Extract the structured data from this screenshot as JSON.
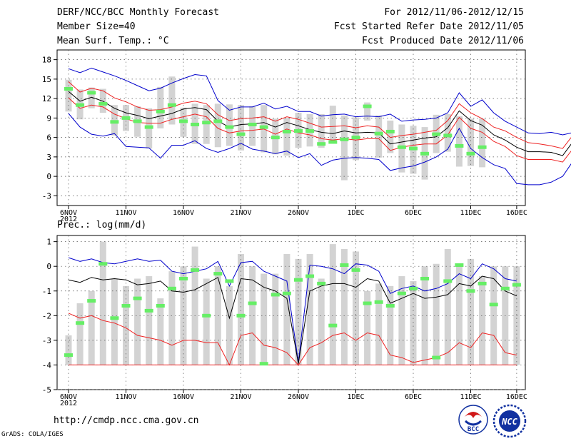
{
  "header": {
    "title": "DERF/NCC/BCC Monthly Forecast",
    "member_size": "Member Size=40",
    "variable": "Mean Surf. Temp.: °C",
    "period": "For 2012/11/06-2012/12/15",
    "started": "Fcst Started Refer Date 2012/11/05",
    "produced": "Fcst Produced Date 2012/11/06"
  },
  "footer": {
    "url": "http://cmdp.ncc.cma.gov.cn",
    "grads": "GrADS: COLA/IGES",
    "logo_bcc_text": "BCC",
    "logo_ncc_text": "NCC"
  },
  "colors": {
    "bar": "#d3d3d3",
    "obs": "#66ee66",
    "mean": "#000000",
    "inner": "#ee2222",
    "outer": "#0000cc",
    "axis": "#000000",
    "grid": "#555555"
  },
  "chart_data": [
    {
      "type": "line",
      "title": "Mean Surf. Temp.: °C",
      "ylim": [
        -4.5,
        19.5
      ],
      "yticks": [
        -3,
        0,
        3,
        6,
        9,
        12,
        15,
        18
      ],
      "ytick_labels": [
        "-3",
        "0",
        "3",
        "6",
        "9",
        "12",
        "15",
        "18"
      ],
      "xticks": [
        0,
        5,
        10,
        15,
        20,
        25,
        30,
        35,
        39
      ],
      "xtick_labels": [
        "6NOV",
        "11NOV",
        "16NOV",
        "21NOV",
        "26NOV",
        "1DEC",
        "6DEC",
        "11DEC",
        "16DEC"
      ],
      "x_sub_label": "2012",
      "grid": true,
      "series": [
        {
          "name": "max",
          "values": [
            16.6,
            16.0,
            16.7,
            16.1,
            15.5,
            14.8,
            14.0,
            13.2,
            13.6,
            14.4,
            15.1,
            15.7,
            15.5,
            11.7,
            10.2,
            10.7,
            10.7,
            11.3,
            10.4,
            10.8,
            10.0,
            10.0,
            9.3,
            9.5,
            9.6,
            9.2,
            9.3,
            9.2,
            9.6,
            8.5,
            8.7,
            8.8,
            9.0,
            9.8,
            12.9,
            10.8,
            11.8,
            9.8,
            8.5,
            7.6,
            6.7,
            6.6,
            6.8,
            6.4,
            6.8,
            6.1,
            5.0,
            5.6,
            7.0
          ]
        },
        {
          "name": "upper",
          "values": [
            14.6,
            13.0,
            13.6,
            13.2,
            12.1,
            11.5,
            10.7,
            10.2,
            10.3,
            10.7,
            11.3,
            11.6,
            11.2,
            9.5,
            8.6,
            8.9,
            9.0,
            9.2,
            8.5,
            9.2,
            8.8,
            8.2,
            7.6,
            7.7,
            7.8,
            7.5,
            7.8,
            7.6,
            6.0,
            6.3,
            6.5,
            6.8,
            7.1,
            8.6,
            11.2,
            9.8,
            8.9,
            7.6,
            7.0,
            6.0,
            5.2,
            5.0,
            4.7,
            4.3,
            6.6,
            6.4,
            5.1,
            3.8,
            4.5
          ]
        },
        {
          "name": "mean",
          "values": [
            13.1,
            11.6,
            12.2,
            11.6,
            10.5,
            9.8,
            9.4,
            8.9,
            9.3,
            9.7,
            10.4,
            10.6,
            10.3,
            8.5,
            7.6,
            8.0,
            8.1,
            8.3,
            7.6,
            8.3,
            7.8,
            7.2,
            6.8,
            6.6,
            7.0,
            6.7,
            6.8,
            6.7,
            5.0,
            5.3,
            5.6,
            5.9,
            6.1,
            7.5,
            10.1,
            8.6,
            7.9,
            6.4,
            5.6,
            4.5,
            3.8,
            3.8,
            3.7,
            3.2,
            5.6,
            5.6,
            4.2,
            3.1,
            3.5
          ]
        },
        {
          "name": "lower",
          "values": [
            12.1,
            10.5,
            11.0,
            10.7,
            9.6,
            8.9,
            8.3,
            8.2,
            8.2,
            8.8,
            9.2,
            9.6,
            9.2,
            7.4,
            6.7,
            7.0,
            7.1,
            7.3,
            6.5,
            7.3,
            6.7,
            6.4,
            5.8,
            5.6,
            5.8,
            5.6,
            5.8,
            5.8,
            4.0,
            4.5,
            4.8,
            5.0,
            5.0,
            6.4,
            9.1,
            7.4,
            6.8,
            5.4,
            4.6,
            3.2,
            2.6,
            2.6,
            2.6,
            2.2,
            4.5,
            4.5,
            3.1,
            2.2,
            2.8
          ]
        },
        {
          "name": "min",
          "values": [
            9.7,
            7.6,
            6.5,
            6.2,
            6.6,
            4.6,
            4.5,
            4.4,
            2.8,
            4.8,
            4.8,
            5.5,
            4.3,
            3.7,
            4.3,
            5.1,
            4.2,
            3.9,
            3.5,
            3.9,
            2.9,
            3.5,
            1.7,
            2.5,
            2.8,
            2.9,
            2.8,
            2.6,
            0.9,
            1.3,
            1.6,
            2.2,
            3.0,
            4.2,
            7.4,
            4.3,
            2.9,
            1.8,
            1.2,
            -1.1,
            -1.3,
            -1.3,
            -0.9,
            0.0,
            2.6,
            2.7,
            0.5,
            -0.1,
            1.0
          ]
        },
        {
          "name": "obs",
          "values": [
            13.5,
            11.0,
            12.9,
            11.2,
            8.4,
            9.0,
            8.5,
            7.6,
            10.0,
            11.0,
            8.5,
            8.0,
            8.3,
            8.5,
            7.6,
            6.5,
            8.0,
            7.6,
            6.0,
            6.9,
            7.0,
            7.0,
            5.0,
            5.3,
            5.7,
            6.0,
            10.8,
            6.6,
            6.9,
            4.5,
            4.3,
            3.5,
            6.5,
            6.3,
            4.7,
            3.5,
            4.5
          ]
        },
        {
          "name": "bar_top",
          "values": [
            14.9,
            13.4,
            13.7,
            13.5,
            11.0,
            11.0,
            10.8,
            10.5,
            13.8,
            15.4,
            10.6,
            11.2,
            11.0,
            11.2,
            11.1,
            11.0,
            10.8,
            11.0,
            8.9,
            9.0,
            9.8,
            9.6,
            9.6,
            10.9,
            9.4,
            9.1,
            11.4,
            9.4,
            8.6,
            8.0,
            7.8,
            7.6,
            9.5,
            9.6,
            9.3,
            8.9,
            8.9
          ]
        },
        {
          "name": "bar_bottom",
          "values": [
            10.0,
            8.8,
            10.5,
            9.8,
            6.3,
            7.0,
            6.1,
            4.3,
            7.4,
            8.0,
            6.1,
            5.0,
            5.0,
            4.5,
            4.7,
            4.0,
            4.7,
            3.7,
            3.4,
            3.2,
            4.4,
            4.6,
            4.4,
            5.2,
            -0.6,
            2.5,
            8.6,
            2.9,
            3.6,
            0.6,
            0.4,
            -0.5,
            3.6,
            3.8,
            1.5,
            1.6,
            1.4
          ]
        }
      ]
    },
    {
      "type": "line",
      "title": "Prec.: log(mm/d)",
      "ylim": [
        -5,
        1.25
      ],
      "yticks": [
        -5,
        -4,
        -3,
        -2,
        -1,
        0,
        1
      ],
      "ytick_labels": [
        "-5",
        "-4",
        "-3",
        "-2",
        "-1",
        "0",
        "1"
      ],
      "xticks": [
        0,
        5,
        10,
        15,
        20,
        25,
        30,
        35,
        39
      ],
      "xtick_labels": [
        "6NOV",
        "11NOV",
        "16NOV",
        "21NOV",
        "26NOV",
        "1DEC",
        "6DEC",
        "11DEC",
        "16DEC"
      ],
      "x_sub_label": "2012",
      "grid": true,
      "series": [
        {
          "name": "max",
          "values": [
            0.35,
            0.2,
            0.3,
            0.15,
            0.1,
            0.2,
            0.3,
            0.2,
            0.25,
            -0.2,
            -0.3,
            -0.2,
            -0.1,
            0.2,
            -0.8,
            0.15,
            0.2,
            -0.2,
            -0.4,
            -0.6,
            -3.9,
            0.05,
            0.0,
            -0.1,
            -0.3,
            0.1,
            0.05,
            -0.2,
            -1.1,
            -0.9,
            -0.8,
            -1.0,
            -0.9,
            -0.7,
            -0.3,
            -0.5,
            0.1,
            -0.1,
            -0.5,
            -0.6
          ]
        },
        {
          "name": "mean",
          "values": [
            -0.55,
            -0.65,
            -0.45,
            -0.55,
            -0.5,
            -0.55,
            -0.75,
            -0.7,
            -0.6,
            -1.0,
            -1.05,
            -0.95,
            -0.7,
            -0.45,
            -2.1,
            -0.5,
            -0.55,
            -0.85,
            -1.0,
            -1.3,
            -3.95,
            -1.0,
            -0.8,
            -0.7,
            -0.7,
            -0.85,
            -0.5,
            -0.6,
            -1.5,
            -1.3,
            -1.1,
            -1.3,
            -1.25,
            -1.15,
            -0.7,
            -0.8,
            -0.4,
            -0.5,
            -1.0,
            -1.2
          ]
        },
        {
          "name": "lower",
          "values": [
            -1.9,
            -2.1,
            -2.0,
            -2.2,
            -2.3,
            -2.5,
            -2.8,
            -2.9,
            -3.0,
            -3.2,
            -3.0,
            -3.0,
            -3.1,
            -3.1,
            -4.0,
            -2.8,
            -2.7,
            -3.2,
            -3.3,
            -3.5,
            -4.0,
            -3.3,
            -3.1,
            -2.8,
            -2.7,
            -3.0,
            -2.7,
            -2.8,
            -3.6,
            -3.7,
            -3.9,
            -3.8,
            -3.7,
            -3.5,
            -3.1,
            -3.3,
            -2.7,
            -2.8,
            -3.5,
            -3.6
          ]
        },
        {
          "name": "min",
          "values": [
            -4,
            -4,
            -4,
            -4,
            -4,
            -4,
            -4,
            -4,
            -4,
            -4,
            -4,
            -4,
            -4,
            -4,
            -4,
            -4,
            -4,
            -4,
            -4,
            -4,
            -4,
            -4,
            -4,
            -4,
            -4,
            -4,
            -4,
            -4,
            -4,
            -4,
            -4,
            -4,
            -4,
            -4,
            -4,
            -4,
            -4,
            -4,
            -4,
            -4
          ]
        },
        {
          "name": "obs",
          "values": [
            -3.6,
            -2.3,
            -1.4,
            0.1,
            -2.1,
            -1.6,
            -1.3,
            -1.8,
            -1.6,
            -0.9,
            -0.5,
            -0.15,
            -2.0,
            -0.3,
            -0.6,
            -2.0,
            -1.5,
            -3.95,
            -1.15,
            -1.1,
            -0.55,
            -0.4,
            -0.7,
            -2.4,
            0.05,
            -0.15,
            -1.5,
            -1.45,
            -1.6,
            -1.1,
            -0.9,
            -0.5,
            -3.7,
            -0.6,
            0.05,
            -1.0,
            -0.7,
            -1.55,
            -0.9,
            -0.75
          ]
        },
        {
          "name": "bar_top",
          "values": [
            -2.8,
            -1.5,
            -1.0,
            1.0,
            -0.5,
            -0.8,
            -0.5,
            -0.4,
            -1.3,
            -0.2,
            0.0,
            0.8,
            -0.5,
            0.0,
            -0.8,
            0.5,
            0.0,
            -0.3,
            -0.3,
            0.5,
            0.3,
            0.5,
            -0.5,
            0.9,
            0.7,
            0.6,
            -1.0,
            -0.7,
            -0.8,
            -0.4,
            -0.6,
            0.0,
            0.1,
            0.7,
            0.0,
            0.3,
            -0.4,
            0.0,
            0.0,
            0.0
          ]
        }
      ]
    }
  ]
}
